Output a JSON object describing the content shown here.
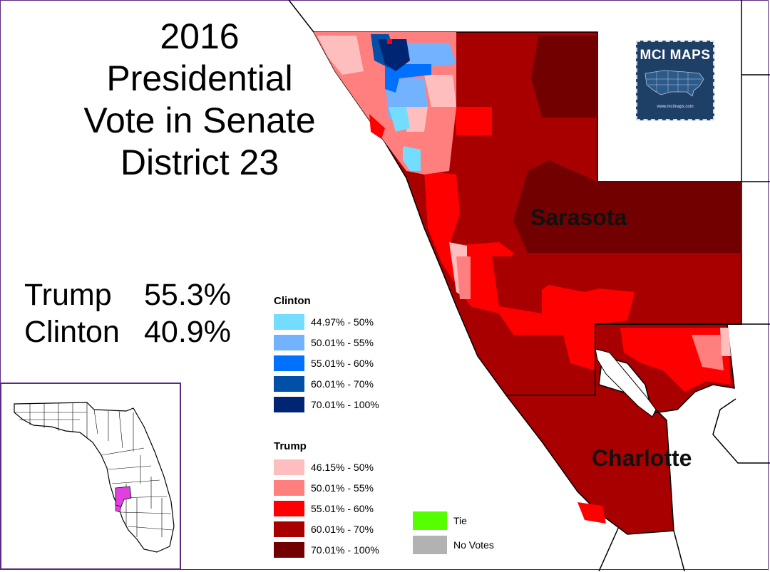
{
  "title": {
    "line1": "2016",
    "line2": "Presidential",
    "line3": "Vote in Senate",
    "line4": "District 23"
  },
  "results": [
    {
      "candidate": "Trump",
      "pct": "55.3%"
    },
    {
      "candidate": "Clinton",
      "pct": "40.9%"
    }
  ],
  "legend": {
    "clinton": {
      "title": "Clinton",
      "items": [
        {
          "label": "44.97% - 50%",
          "color": "#73dcff"
        },
        {
          "label": "50.01% - 55%",
          "color": "#73b2ff"
        },
        {
          "label": "55.01% - 60%",
          "color": "#0070ff"
        },
        {
          "label": "60.01% - 70%",
          "color": "#0050a8"
        },
        {
          "label": "70.01% - 100%",
          "color": "#002673"
        }
      ]
    },
    "trump": {
      "title": "Trump",
      "items": [
        {
          "label": "46.15% - 50%",
          "color": "#ffbebe"
        },
        {
          "label": "50.01% - 55%",
          "color": "#ff7f7f"
        },
        {
          "label": "55.01% - 60%",
          "color": "#ff0000"
        },
        {
          "label": "60.01% - 70%",
          "color": "#a80000"
        },
        {
          "label": "70.01% - 100%",
          "color": "#730000"
        }
      ]
    },
    "other": [
      {
        "label": "Tie",
        "color": "#55ff00"
      },
      {
        "label": "No Votes",
        "color": "#b2b2b2"
      }
    ]
  },
  "counties": {
    "sarasota": "Sarasota",
    "charlotte": "Charlotte"
  },
  "logo": {
    "text": "MCI MAPS",
    "url": "www.mcimaps.com"
  },
  "inset": {
    "highlight_color": "#e040e0"
  }
}
